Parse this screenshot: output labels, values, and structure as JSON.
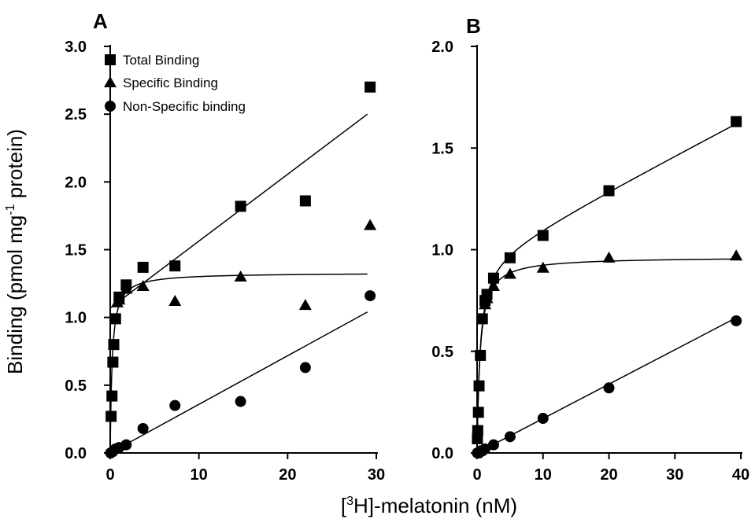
{
  "chart_data": [
    {
      "type": "scatter",
      "panel": "A",
      "xlim": [
        0,
        30
      ],
      "ylim": [
        0,
        3.0
      ],
      "xticks": [
        "0",
        "10",
        "20",
        "30"
      ],
      "yticks": [
        "0.0",
        "0.5",
        "1.0",
        "1.5",
        "2.0",
        "2.5",
        "3.0"
      ],
      "legend_position": "top-left",
      "series": [
        {
          "name": "Total Binding",
          "marker": "square",
          "x": [
            0.1,
            0.2,
            0.3,
            0.4,
            0.6,
            1.0,
            1.8,
            3.7,
            7.3,
            14.7,
            22.0,
            29.3
          ],
          "y": [
            0.27,
            0.42,
            0.67,
            0.8,
            0.99,
            1.15,
            1.24,
            1.37,
            1.38,
            1.82,
            1.86,
            2.7
          ],
          "fit": {
            "kind": "line",
            "x": [
              0.0,
              29.0
            ],
            "y": [
              1.07,
              2.5
            ]
          }
        },
        {
          "name": "Specific Binding",
          "marker": "triangle",
          "x": [
            0.8,
            1.0,
            1.8,
            3.7,
            7.3,
            14.7,
            22.0,
            29.3
          ],
          "y": [
            1.11,
            1.13,
            1.21,
            1.23,
            1.12,
            1.3,
            1.09,
            1.68
          ],
          "fit": {
            "kind": "hyperbolic",
            "bmax": 1.33,
            "kd": 0.22,
            "x0": 0,
            "x1": 29
          }
        },
        {
          "name": "Non-Specific binding",
          "marker": "circle",
          "x": [
            0.05,
            0.3,
            0.6,
            1.0,
            1.8,
            3.7,
            7.3,
            14.7,
            22.0,
            29.3
          ],
          "y": [
            0.0,
            0.01,
            0.03,
            0.04,
            0.06,
            0.18,
            0.35,
            0.38,
            0.63,
            1.16
          ],
          "fit": {
            "kind": "line",
            "x": [
              0.0,
              29.0
            ],
            "y": [
              0.0,
              1.04
            ]
          }
        }
      ]
    },
    {
      "type": "scatter",
      "panel": "B",
      "xlim": [
        0,
        40
      ],
      "ylim": [
        0,
        2.0
      ],
      "xticks": [
        "0",
        "10",
        "20",
        "30",
        "40"
      ],
      "yticks": [
        "0.0",
        "0.5",
        "1.0",
        "1.5",
        "2.0"
      ],
      "series": [
        {
          "name": "Total Binding",
          "marker": "square",
          "x": [
            0.05,
            0.1,
            0.2,
            0.3,
            0.5,
            0.8,
            1.2,
            1.5,
            2.5,
            5.0,
            10.0,
            20.0,
            39.3
          ],
          "y": [
            0.07,
            0.11,
            0.2,
            0.33,
            0.48,
            0.66,
            0.75,
            0.78,
            0.86,
            0.96,
            1.07,
            1.29,
            1.63
          ],
          "fit": {
            "kind": "hyperbolic_plus_linear",
            "bmax": 0.965,
            "kd": 0.45,
            "slope": 0.01692,
            "x0": 0,
            "x1": 39.3
          }
        },
        {
          "name": "Specific Binding",
          "marker": "triangle",
          "x": [
            1.2,
            1.5,
            2.5,
            5.0,
            10.0,
            20.0,
            39.3
          ],
          "y": [
            0.73,
            0.76,
            0.82,
            0.88,
            0.91,
            0.96,
            0.97
          ],
          "fit": {
            "kind": "hyperbolic",
            "bmax": 0.965,
            "kd": 0.45,
            "x0": 0,
            "x1": 39.3
          }
        },
        {
          "name": "Non-Specific binding",
          "marker": "circle",
          "x": [
            0.05,
            0.1,
            0.3,
            0.5,
            0.8,
            1.2,
            2.5,
            5.0,
            10.0,
            20.0,
            39.3
          ],
          "y": [
            0.0,
            0.0,
            0.0,
            0.01,
            0.01,
            0.02,
            0.04,
            0.08,
            0.17,
            0.32,
            0.65
          ],
          "fit": {
            "kind": "line",
            "x": [
              0.0,
              39.3
            ],
            "y": [
              0.0,
              0.665
            ]
          }
        }
      ]
    }
  ],
  "labels": {
    "panel_a": "A",
    "panel_b": "B",
    "y_axis_title_main": "Binding (pmol mg",
    "y_axis_title_sup": "-1",
    "y_axis_title_tail": " protein)",
    "x_axis_title_open": "[",
    "x_axis_title_sup": "3",
    "x_axis_title_tail": "H]-melatonin (nM)"
  },
  "legend": {
    "items": [
      {
        "label": "Total Binding",
        "marker": "square"
      },
      {
        "label": "Specific Binding",
        "marker": "triangle"
      },
      {
        "label": "Non-Specific binding",
        "marker": "circle"
      }
    ]
  },
  "colors": {
    "ink": "#000000",
    "background": "#ffffff"
  }
}
